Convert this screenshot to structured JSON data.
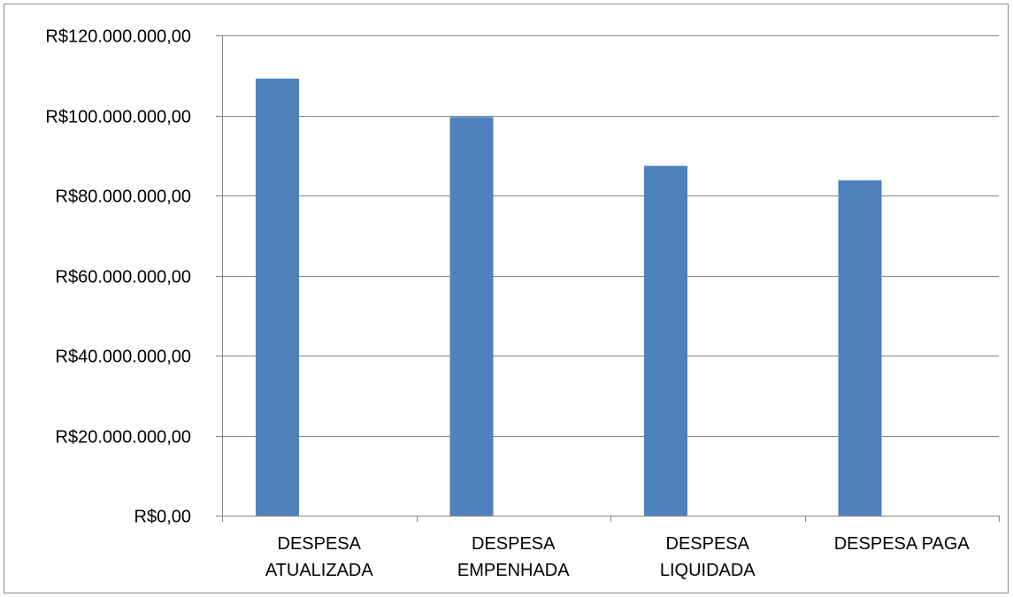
{
  "chart_data": {
    "type": "bar",
    "title": "",
    "xlabel": "",
    "ylabel": "",
    "categories": [
      [
        "DESPESA",
        "ATUALIZADA"
      ],
      [
        "DESPESA",
        "EMPENHADA"
      ],
      [
        "DESPESA",
        "LIQUIDADA"
      ],
      [
        "DESPESA PAGA"
      ]
    ],
    "values": [
      109200000,
      99600000,
      87400000,
      83800000
    ],
    "ylim": [
      0,
      120000000
    ],
    "yticks": [
      0,
      20000000,
      40000000,
      60000000,
      80000000,
      100000000,
      120000000
    ],
    "ytick_labels": [
      "R$0,00",
      "R$20.000.000,00",
      "R$40.000.000,00",
      "R$60.000.000,00",
      "R$80.000.000,00",
      "R$100.000.000,00",
      "R$120.000.000,00"
    ],
    "grid": true,
    "legend": "none",
    "colors": {
      "bar": "#4f81bd",
      "grid": "#868686",
      "axis": "#868686"
    }
  }
}
